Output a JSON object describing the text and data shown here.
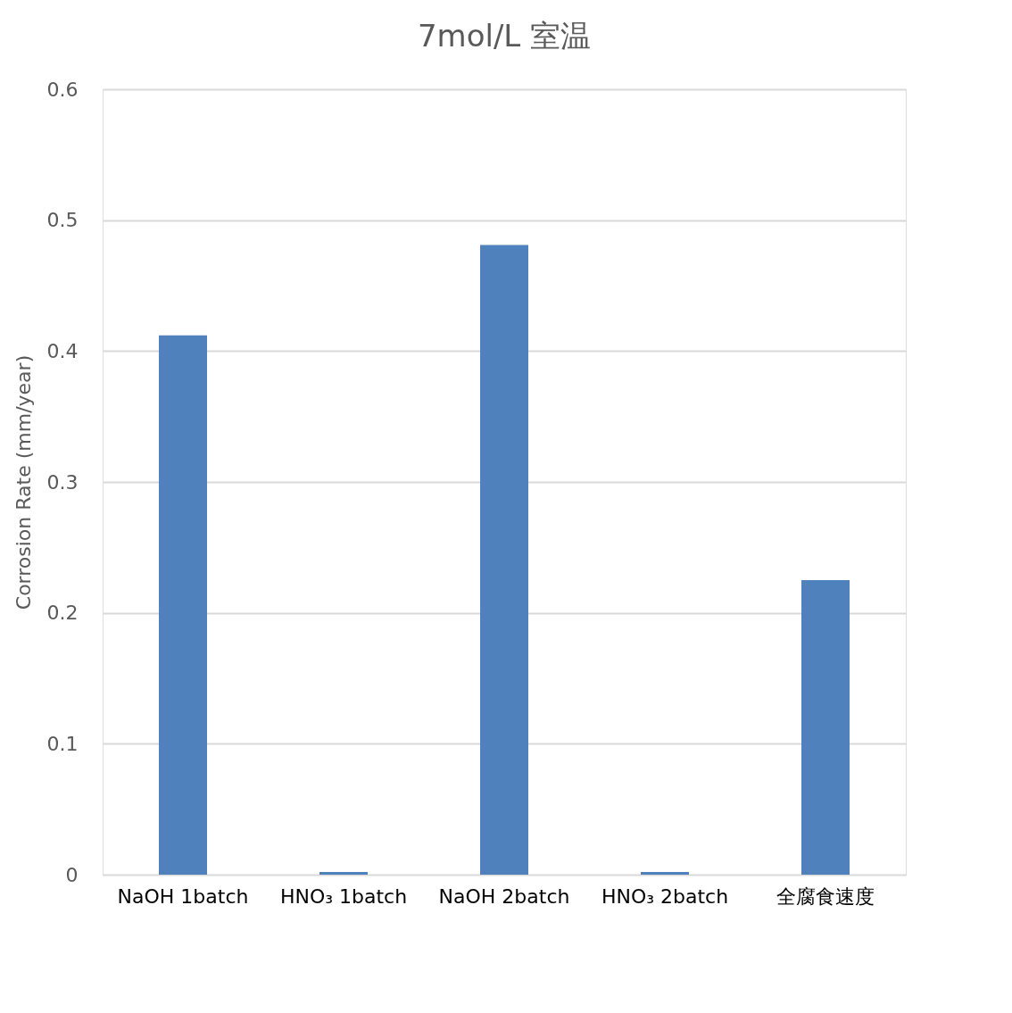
{
  "chart_data": {
    "type": "bar",
    "title": "7mol/L 室温",
    "ylabel": "Corrosion Rate (mm/year)",
    "categories": [
      "NaOH 1batch",
      "HNO₃ 1batch",
      "NaOH 2batch",
      "HNO₃ 2batch",
      "全腐食速度"
    ],
    "values": [
      0.412,
      0.002,
      0.481,
      0.002,
      0.225
    ],
    "color": "#4f81bd",
    "ylim": [
      0,
      0.6
    ],
    "yticks": [
      0,
      0.1,
      0.2,
      0.3,
      0.4,
      0.5,
      0.6
    ],
    "grid": "y"
  }
}
